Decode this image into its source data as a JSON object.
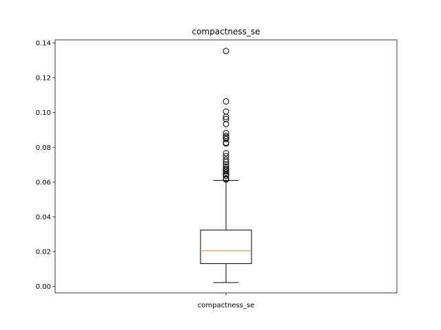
{
  "chart_data": {
    "type": "box",
    "title": "compactness_se",
    "categories": [
      "compactness_se"
    ],
    "xlabel": "",
    "ylabel": "",
    "ylim": [
      -0.0037,
      0.1418
    ],
    "y_ticks": [
      0.0,
      0.02,
      0.04,
      0.06,
      0.08,
      0.1,
      0.12,
      0.14
    ],
    "y_tick_labels": [
      "0.00",
      "0.02",
      "0.04",
      "0.06",
      "0.08",
      "0.10",
      "0.12",
      "0.14"
    ],
    "grid": false,
    "box": {
      "whisker_low": 0.00225,
      "q1": 0.0131,
      "median": 0.0205,
      "q3": 0.0324,
      "whisker_high": 0.061
    },
    "outliers": [
      0.1354,
      0.1064,
      0.1006,
      0.0975,
      0.0963,
      0.0934,
      0.0882,
      0.0866,
      0.0858,
      0.0848,
      0.0827,
      0.0822,
      0.0766,
      0.0749,
      0.073,
      0.0716,
      0.0702,
      0.0689,
      0.0678,
      0.0671,
      0.0665,
      0.0656,
      0.0645,
      0.0635,
      0.062,
      0.0615
    ],
    "colors": {
      "box": "#000000",
      "median": "#ff7f0e",
      "outlier": "#000000",
      "background": "#ffffff"
    }
  }
}
